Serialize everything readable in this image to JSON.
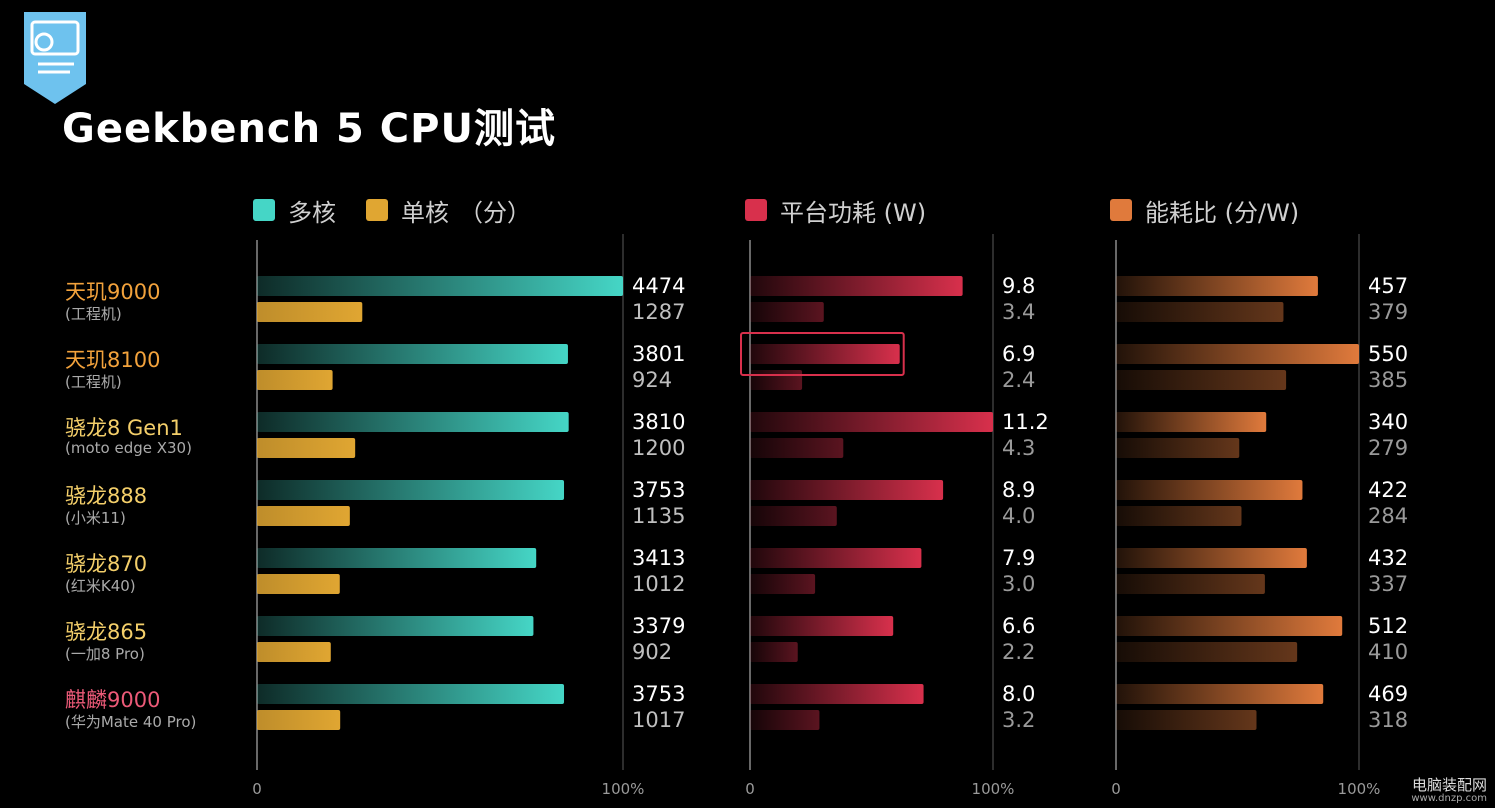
{
  "title": "Geekbench 5 CPU测试",
  "legend": {
    "multi": "多核",
    "single": "单核",
    "score_unit": "（分）",
    "power": "平台功耗 (W)",
    "efficiency": "能耗比 (分/W)"
  },
  "colors": {
    "multi": "#45d6c6",
    "single": "#e0a632",
    "power": "#d8304c",
    "efficiency": "#e07a3c",
    "name_orange": "#f2a23c",
    "name_yellow": "#f4cf6a",
    "name_red": "#ec5a78"
  },
  "devices": [
    {
      "name": "天玑9000",
      "note": "(工程机)",
      "color": "name_orange"
    },
    {
      "name": "天玑8100",
      "note": "(工程机)",
      "color": "name_orange"
    },
    {
      "name": "骁龙8 Gen1",
      "note": "(moto edge X30)",
      "color": "name_yellow"
    },
    {
      "name": "骁龙888",
      "note": "(小米11)",
      "color": "name_yellow"
    },
    {
      "name": "骁龙870",
      "note": "(红米K40)",
      "color": "name_yellow"
    },
    {
      "name": "骁龙865",
      "note": "(一加8 Pro)",
      "color": "name_yellow"
    },
    {
      "name": "麒麟9000",
      "note": "(华为Mate 40 Pro)",
      "color": "name_red"
    }
  ],
  "chart_data": [
    {
      "type": "bar",
      "categories": [
        "天玑9000",
        "天玑8100",
        "骁龙8 Gen1",
        "骁龙888",
        "骁龙870",
        "骁龙865",
        "麒麟9000"
      ],
      "series": [
        {
          "name": "多核",
          "values": [
            4474,
            3801,
            3810,
            3753,
            3413,
            3379,
            3753
          ],
          "labels": [
            "4474",
            "3801",
            "3810",
            "3753",
            "3413",
            "3379",
            "3753"
          ]
        },
        {
          "name": "单核",
          "values": [
            1287,
            924,
            1200,
            1135,
            1012,
            902,
            1017
          ],
          "labels": [
            "1287",
            "924",
            "1200",
            "1135",
            "1012",
            "902",
            "1017"
          ]
        }
      ],
      "xlim": [
        0,
        4474
      ],
      "ticks": [
        "0",
        "100%"
      ],
      "highlight_index": null
    },
    {
      "type": "bar",
      "categories": [
        "天玑9000",
        "天玑8100",
        "骁龙8 Gen1",
        "骁龙888",
        "骁龙870",
        "骁龙865",
        "麒麟9000"
      ],
      "series": [
        {
          "values": [
            9.8,
            6.9,
            11.2,
            8.9,
            7.9,
            6.6,
            8.0
          ],
          "labels": [
            "9.8",
            "6.9",
            "11.2",
            "8.9",
            "7.9",
            "6.6",
            "8.0"
          ]
        },
        {
          "values": [
            3.4,
            2.4,
            4.3,
            4.0,
            3.0,
            2.2,
            3.2
          ],
          "labels": [
            "3.4",
            "2.4",
            "4.3",
            "4.0",
            "3.0",
            "2.2",
            "3.2"
          ]
        }
      ],
      "xlim": [
        0,
        11.2
      ],
      "ticks": [
        "0",
        "100%"
      ],
      "highlight_index": 1
    },
    {
      "type": "bar",
      "categories": [
        "天玑9000",
        "天玑8100",
        "骁龙8 Gen1",
        "骁龙888",
        "骁龙870",
        "骁龙865",
        "麒麟9000"
      ],
      "series": [
        {
          "values": [
            457,
            550,
            340,
            422,
            432,
            512,
            469
          ],
          "labels": [
            "457",
            "550",
            "340",
            "422",
            "432",
            "512",
            "469"
          ]
        },
        {
          "values": [
            379,
            385,
            279,
            284,
            337,
            410,
            318
          ],
          "labels": [
            "379",
            "385",
            "279",
            "284",
            "337",
            "410",
            "318"
          ]
        }
      ],
      "xlim": [
        0,
        550
      ],
      "ticks": [
        "0",
        "100%"
      ],
      "highlight_index": null
    }
  ],
  "watermark": {
    "site": "电脑装配网",
    "url": "www.dnzp.com"
  }
}
